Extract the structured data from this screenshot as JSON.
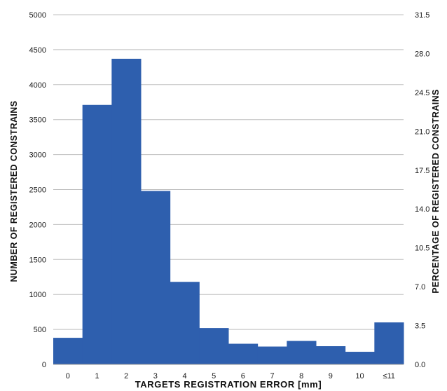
{
  "chart_data": {
    "type": "bar",
    "categories": [
      "0",
      "1",
      "2",
      "3",
      "4",
      "5",
      "6",
      "7",
      "8",
      "9",
      "10",
      "≤11"
    ],
    "values": [
      380,
      3710,
      4370,
      2480,
      1180,
      520,
      295,
      255,
      335,
      260,
      180,
      600
    ],
    "xlabel": "TARGETS  REGISTRATION  ERROR  [mm]",
    "ylabel": "NUMBER  OF  REGISTERED  CONSTRAINS",
    "y2label": "PERCENTAGE  OF  REGISTERED  CONSTRAINS",
    "ylim": [
      0,
      5000
    ],
    "y2lim": [
      0,
      31.5
    ],
    "yticks": [
      "0",
      "500",
      "1000",
      "1500",
      "2000",
      "2500",
      "3000",
      "3500",
      "4000",
      "4500",
      "5000"
    ],
    "y2ticks": [
      "0.0",
      "3.5",
      "7.0",
      "10.5",
      "14.0",
      "17.5",
      "21.0",
      "24.5",
      "28.0",
      "31.5"
    ],
    "grid": true,
    "bar_color": "#2e5fae",
    "grid_color": "#bfbfbf"
  }
}
